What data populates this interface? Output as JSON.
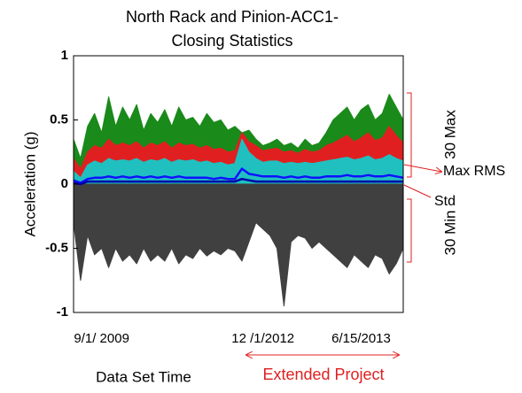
{
  "chart_data": {
    "type": "line",
    "title": "North Rack and Pinion-ACC1-Closing Statistics",
    "y_label": "Acceleration (g)",
    "x_label": "Data Set Time",
    "x": [
      0,
      1,
      2,
      3,
      4,
      5,
      6,
      7,
      8,
      9,
      10,
      11,
      12,
      13,
      14,
      15,
      16,
      17,
      18,
      19,
      20,
      21,
      22,
      23,
      24,
      25,
      26,
      27,
      28,
      29,
      30,
      31,
      32,
      33,
      34,
      35,
      36,
      37,
      38,
      39,
      40,
      41,
      42,
      43,
      44,
      45,
      46,
      47
    ],
    "xlim": [
      0,
      47
    ],
    "xticks": [
      {
        "value": 4,
        "label": "9/1/ 2009"
      },
      {
        "value": 27,
        "label": "12 /1/2012"
      },
      {
        "value": 41,
        "label": "6/15/2013"
      }
    ],
    "ylim": [
      -1,
      1
    ],
    "yticks": [
      -1,
      -0.5,
      0,
      0.5,
      1
    ],
    "series": [
      {
        "color": "#1a8a1a",
        "fill": true,
        "values": [
          0.35,
          0.2,
          0.45,
          0.55,
          0.4,
          0.68,
          0.45,
          0.6,
          0.5,
          0.62,
          0.42,
          0.55,
          0.48,
          0.58,
          0.45,
          0.6,
          0.5,
          0.52,
          0.45,
          0.55,
          0.48,
          0.5,
          0.42,
          0.45,
          0.4,
          0.42,
          0.35,
          0.3,
          0.32,
          0.35,
          0.3,
          0.32,
          0.28,
          0.35,
          0.3,
          0.32,
          0.4,
          0.5,
          0.55,
          0.6,
          0.5,
          0.58,
          0.62,
          0.5,
          0.55,
          0.7,
          0.6,
          0.5
        ]
      },
      {
        "color": "#e02020",
        "fill": true,
        "values": [
          0.2,
          0.12,
          0.25,
          0.3,
          0.28,
          0.35,
          0.3,
          0.32,
          0.3,
          0.33,
          0.28,
          0.32,
          0.3,
          0.33,
          0.28,
          0.32,
          0.3,
          0.31,
          0.28,
          0.3,
          0.27,
          0.28,
          0.25,
          0.26,
          0.4,
          0.33,
          0.3,
          0.26,
          0.27,
          0.28,
          0.25,
          0.26,
          0.24,
          0.27,
          0.25,
          0.26,
          0.3,
          0.32,
          0.35,
          0.38,
          0.33,
          0.36,
          0.4,
          0.34,
          0.36,
          0.45,
          0.38,
          0.32
        ]
      },
      {
        "color": "#20c0c0",
        "fill": true,
        "values": [
          0.1,
          0.05,
          0.15,
          0.18,
          0.16,
          0.2,
          0.18,
          0.19,
          0.18,
          0.2,
          0.17,
          0.19,
          0.18,
          0.2,
          0.17,
          0.19,
          0.18,
          0.19,
          0.17,
          0.18,
          0.16,
          0.17,
          0.15,
          0.16,
          0.35,
          0.25,
          0.2,
          0.17,
          0.18,
          0.18,
          0.16,
          0.17,
          0.16,
          0.17,
          0.16,
          0.17,
          0.18,
          0.19,
          0.2,
          0.21,
          0.19,
          0.2,
          0.22,
          0.19,
          0.2,
          0.23,
          0.2,
          0.18
        ]
      },
      {
        "color": "#404040",
        "fill": true,
        "values": [
          -0.3,
          -0.75,
          -0.4,
          -0.55,
          -0.5,
          -0.65,
          -0.5,
          -0.6,
          -0.55,
          -0.62,
          -0.5,
          -0.6,
          -0.55,
          -0.6,
          -0.5,
          -0.62,
          -0.55,
          -0.58,
          -0.5,
          -0.56,
          -0.52,
          -0.55,
          -0.5,
          -0.52,
          -0.6,
          -0.45,
          -0.3,
          -0.35,
          -0.4,
          -0.5,
          -0.95,
          -0.45,
          -0.4,
          -0.42,
          -0.5,
          -0.45,
          -0.5,
          -0.55,
          -0.6,
          -0.65,
          -0.55,
          -0.6,
          -0.65,
          -0.55,
          -0.58,
          -0.7,
          -0.62,
          -0.5
        ]
      },
      {
        "color": "#1010ff",
        "fill": false,
        "values": [
          0.03,
          0.01,
          0.04,
          0.05,
          0.05,
          0.06,
          0.05,
          0.06,
          0.05,
          0.06,
          0.05,
          0.06,
          0.05,
          0.06,
          0.05,
          0.06,
          0.05,
          0.05,
          0.05,
          0.05,
          0.04,
          0.05,
          0.04,
          0.04,
          0.12,
          0.08,
          0.07,
          0.06,
          0.06,
          0.06,
          0.05,
          0.06,
          0.05,
          0.06,
          0.05,
          0.05,
          0.06,
          0.06,
          0.06,
          0.07,
          0.06,
          0.06,
          0.07,
          0.06,
          0.06,
          0.07,
          0.06,
          0.05
        ]
      },
      {
        "color": "#0000aa",
        "fill": false,
        "values": [
          0.01,
          0.0,
          0.02,
          0.02,
          0.02,
          0.02,
          0.02,
          0.02,
          0.02,
          0.02,
          0.02,
          0.02,
          0.02,
          0.02,
          0.02,
          0.02,
          0.02,
          0.02,
          0.02,
          0.02,
          0.02,
          0.02,
          0.02,
          0.02,
          0.04,
          0.03,
          0.02,
          0.02,
          0.02,
          0.02,
          0.02,
          0.02,
          0.02,
          0.02,
          0.02,
          0.02,
          0.02,
          0.02,
          0.02,
          0.02,
          0.02,
          0.02,
          0.02,
          0.02,
          0.02,
          0.02,
          0.02,
          0.02
        ]
      }
    ],
    "annotations": [
      "30 Max",
      "Max RMS",
      "Std",
      "30 Min",
      "Extended Project"
    ]
  }
}
